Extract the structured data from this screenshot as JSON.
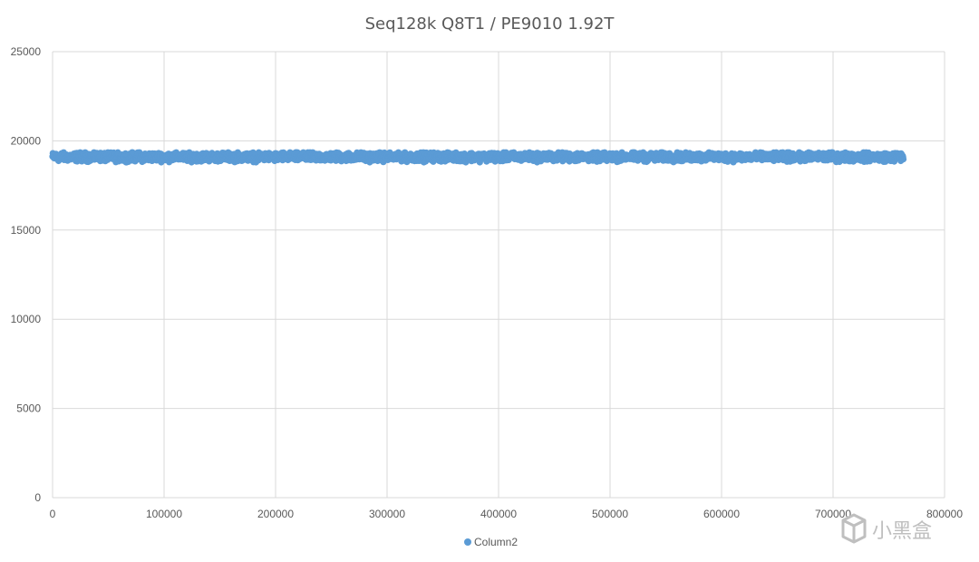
{
  "chart_data": {
    "type": "scatter",
    "title": "Seq128k Q8T1 / PE9010 1.92T",
    "xlabel": "",
    "ylabel": "",
    "xlim": [
      0,
      800000
    ],
    "ylim": [
      0,
      25000
    ],
    "x_ticks": [
      "0",
      "100000",
      "200000",
      "300000",
      "400000",
      "500000",
      "600000",
      "700000",
      "800000"
    ],
    "y_ticks": [
      "0",
      "5000",
      "10000",
      "15000",
      "20000",
      "25000"
    ],
    "grid": true,
    "legend_position": "bottom",
    "series": [
      {
        "name": "Column2",
        "color": "#5b9bd5",
        "x_range": [
          0,
          763000
        ],
        "typical_y": 19100,
        "y_band": [
          18800,
          19350
        ],
        "point_count": 3000
      }
    ]
  },
  "watermark": {
    "text": "小黑盒",
    "icon": "box-logo-icon"
  }
}
